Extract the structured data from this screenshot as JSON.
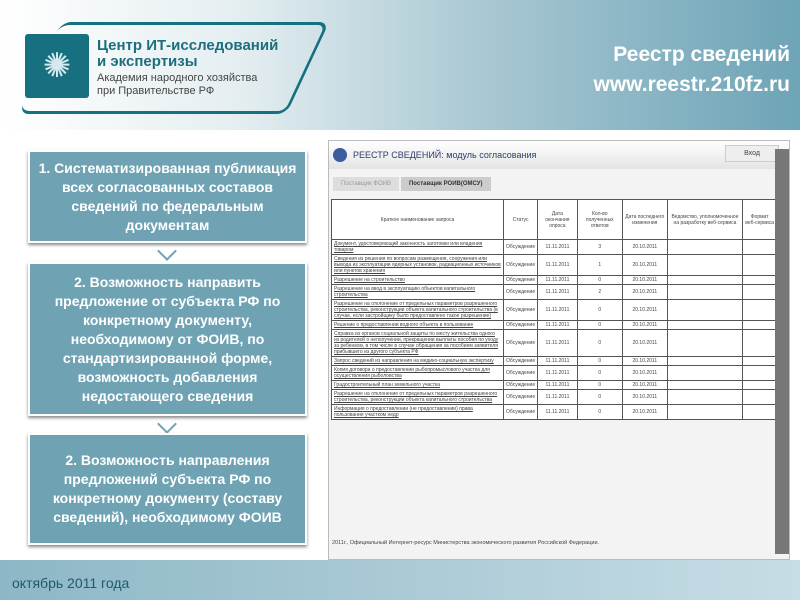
{
  "logo": {
    "line1": "Центр ИТ-исследований",
    "line2": "и экспертизы",
    "line3": "Академия народного хозяйства",
    "line4": "при Правительстве РФ"
  },
  "title": {
    "line1": "Реестр сведений",
    "line2": "www.reestr.210fz.ru"
  },
  "boxes": [
    "1. Систематизированная публикация всех согласованных составов сведений по федеральным документам",
    "2. Возможность направить предложение от субъекта РФ по конкретному документу, необходимому от ФОИВ, по стандартизированной форме, возможность добавления недостающего сведения",
    "2. Возможность направления предложений субъекта РФ по конкретному документу (составу сведений), необходимому ФОИВ"
  ],
  "screenshot": {
    "title": "РЕЕСТР СВЕДЕНИЙ: модуль согласования",
    "login": "Вход",
    "tabs": [
      "Поставщик ФОИВ",
      "Поставщик РОИВ(ОМСУ)"
    ],
    "columns": [
      "Краткое наименование запроса",
      "Статус",
      "Дата окончания опроса",
      "Кол-во полученных ответов",
      "Дата последнего изменения",
      "Ведомство, уполномоченное на разработку веб-сервиса",
      "Формат веб-сервиса"
    ],
    "rows": [
      [
        "Документ, удостоверяющий законность заготовки или владения товаром",
        "Обсуждение",
        "11.11.2011",
        "3",
        "20.10.2011"
      ],
      [
        "Сведения из решения по вопросам размещения, сооружения или вывода из эксплуатации ядерных установок, радиационных источников или пунктов хранения",
        "Обсуждение",
        "11.11.2011",
        "1",
        "20.10.2011"
      ],
      [
        "Разрешение на строительство",
        "Обсуждение",
        "11.11.2011",
        "0",
        "20.10.2011"
      ],
      [
        "Разрешение на ввод в эксплуатацию объектов капитального строительства",
        "Обсуждение",
        "11.11.2011",
        "2",
        "20.10.2011"
      ],
      [
        "Разрешение на отклонение от предельных параметров разрешенного строительства, реконструкции объекта капитального строительства (в случае, если застройщику было предоставлено такое разрешение)",
        "Обсуждение",
        "11.11.2011",
        "0",
        "20.10.2011"
      ],
      [
        "Решение о предоставлении водного объекта в пользование",
        "Обсуждение",
        "11.11.2011",
        "0",
        "20.10.2011"
      ],
      [
        "Справка из органов социальной защиты по месту жительства одного из родителей о неполучении, прекращении выплаты пособия по уходу за ребенком, в том числе в случае обращения за пособием заявителя прибывшего из другого субъекта РФ",
        "Обсуждение",
        "11.11.2011",
        "0",
        "20.10.2011"
      ],
      [
        "Запрос сведений из направления на медико-социальную экспертизу",
        "Обсуждение",
        "11.11.2011",
        "0",
        "20.10.2011"
      ],
      [
        "Копия договора о предоставлении рыбопромыслового участка для осуществления рыболовства",
        "Обсуждение",
        "11.11.2011",
        "0",
        "20.10.2011"
      ],
      [
        "Градостроительный план земельного участка",
        "Обсуждение",
        "11.11.2011",
        "0",
        "20.10.2011"
      ],
      [
        "Разрешение на отклонение от предельных параметров разрешенного строительства, реконструкции объекта капитального строительства",
        "Обсуждение",
        "11.11.2011",
        "0",
        "20.10.2011"
      ],
      [
        "Информация о предоставлении (не предоставлении) права пользования участком недр",
        "Обсуждение",
        "11.11.2011",
        "0",
        "20.10.2011"
      ]
    ],
    "footer": "2011г., Официальный Интернет-ресурс Министерства экономического развития Российской Федерации."
  },
  "date": "октябрь 2011 года"
}
